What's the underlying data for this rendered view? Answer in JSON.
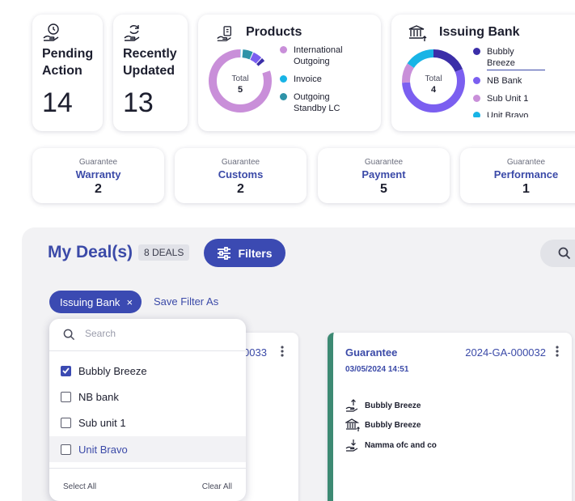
{
  "stats": [
    {
      "label_line1": "Pending",
      "label_line2": "Action",
      "value": "14",
      "icon": "clock-hand-icon"
    },
    {
      "label_line1": "Recently",
      "label_line2": "Updated",
      "value": "13",
      "icon": "refresh-hand-icon"
    }
  ],
  "products": {
    "title": "Products",
    "total_label": "Total",
    "total_value": "5",
    "legend": [
      {
        "line1": "International",
        "line2": "Outgoing",
        "color": "#c98fd9"
      },
      {
        "line1": "Invoice",
        "line2": "",
        "color": "#18b4e6"
      },
      {
        "line1": "Outgoing",
        "line2": "Standby LC",
        "color": "#2e93a8"
      }
    ]
  },
  "issuing_bank": {
    "title": "Issuing Bank",
    "total_label": "Total",
    "total_value": "4",
    "legend": [
      {
        "line1": "Bubbly",
        "line2": "Breeze",
        "color": "#3b2ea8"
      },
      {
        "line1": "NB Bank",
        "line2": "",
        "color": "#7b5ff0"
      },
      {
        "line1": "Sub Unit 1",
        "line2": "",
        "color": "#c98fd9"
      },
      {
        "line1": "Unit Bravo",
        "line2": "",
        "color": "#18b4e6"
      }
    ]
  },
  "guarantee_cards": [
    {
      "sub": "Guarantee",
      "type": "Warranty",
      "count": "2"
    },
    {
      "sub": "Guarantee",
      "type": "Customs",
      "count": "2"
    },
    {
      "sub": "Guarantee",
      "type": "Payment",
      "count": "5"
    },
    {
      "sub": "Guarantee",
      "type": "Performance",
      "count": "1"
    }
  ],
  "deals": {
    "title": "My Deal(s)",
    "badge": "8 DEALS",
    "filters_label": "Filters",
    "chip_label": "Issuing Bank",
    "chip_close": "×",
    "save_filter_label": "Save Filter As"
  },
  "dropdown": {
    "search_placeholder": "Search",
    "options": [
      {
        "label": "Bubbly Breeze",
        "checked": true
      },
      {
        "label": "NB bank",
        "checked": false
      },
      {
        "label": "Sub unit 1",
        "checked": false
      },
      {
        "label": "Unit Bravo",
        "checked": false
      }
    ],
    "select_all": "Select All",
    "clear_all": "Clear All"
  },
  "deal_cards": [
    {
      "ref_partial": "0033"
    },
    {
      "type": "Guarantee",
      "ref": "2024-GA-000032",
      "date": "03/05/2024 14:51",
      "parties": [
        {
          "icon": "hand-upload-icon",
          "name": "Bubbly Breeze"
        },
        {
          "icon": "bank-icon",
          "name": "Bubbly Breeze"
        },
        {
          "icon": "hand-download-icon",
          "name": "Namma ofc and co"
        }
      ]
    }
  ]
}
